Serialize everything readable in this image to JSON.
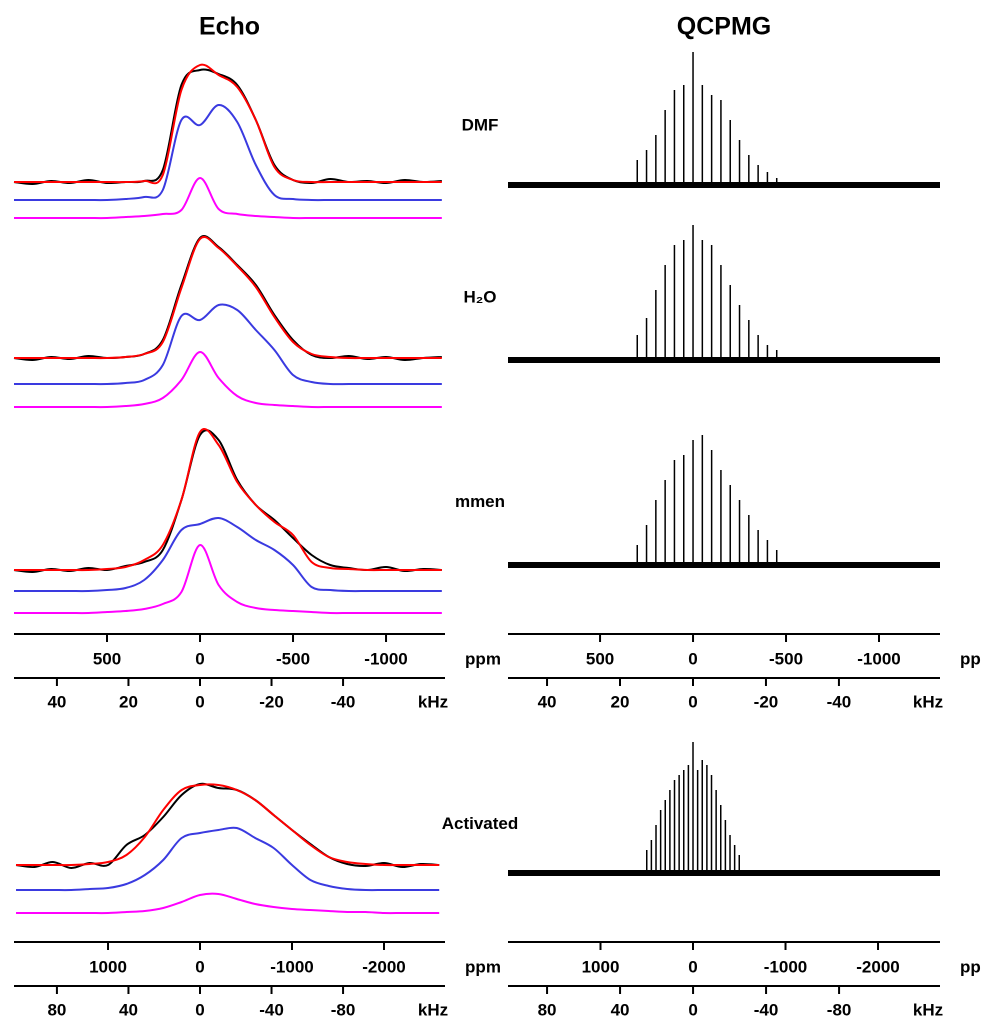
{
  "chart_data": [
    {
      "type": "line",
      "title": "Echo",
      "x_label": "ppm",
      "x2_label": "kHz",
      "xlim": [
        1000,
        -1317
      ],
      "xticks": [
        500,
        0,
        -500,
        -1000
      ],
      "x2lim": [
        52,
        -68.5
      ],
      "x2ticks": [
        40,
        20,
        0,
        -20,
        -40
      ],
      "ylim": [
        0,
        56.5
      ],
      "x": [
        1000,
        900,
        800,
        700,
        600,
        500,
        400,
        300,
        200,
        100,
        0,
        -100,
        -200,
        -300,
        -400,
        -500,
        -600,
        -700,
        -800,
        -900,
        -1000,
        -1100,
        -1200,
        -1300
      ],
      "panels": [
        {
          "label": "DMF",
          "series": [
            {
              "color": "#000000",
              "values": [
                43.8,
                43.6,
                43.9,
                43.7,
                44.0,
                43.7,
                43.8,
                43.9,
                45.0,
                53.5,
                55.0,
                54.6,
                53.5,
                50.0,
                45.5,
                44.0,
                43.7,
                44.1,
                43.8,
                43.9,
                43.7,
                44.0,
                43.8,
                43.9
              ]
            },
            {
              "color": "#ff0000",
              "values": [
                43.8,
                43.8,
                43.8,
                43.8,
                43.8,
                43.8,
                43.8,
                43.9,
                44.5,
                53.0,
                55.5,
                54.5,
                53.3,
                50.0,
                45.3,
                44.0,
                43.8,
                43.8,
                43.8,
                43.8,
                43.8,
                43.8,
                43.8,
                43.8
              ]
            },
            {
              "color": "#3a3ae0",
              "values": [
                42.0,
                42.0,
                42.0,
                42.0,
                42.0,
                42.0,
                42.1,
                42.3,
                43.0,
                50.0,
                49.5,
                51.5,
                49.8,
                45.5,
                42.5,
                42.1,
                42.0,
                42.0,
                42.0,
                42.0,
                42.0,
                42.0,
                42.0,
                42.0
              ]
            },
            {
              "color": "#ff00ff",
              "values": [
                40.2,
                40.2,
                40.2,
                40.2,
                40.2,
                40.2,
                40.3,
                40.4,
                40.6,
                41.0,
                44.2,
                41.1,
                40.6,
                40.4,
                40.3,
                40.2,
                40.2,
                40.2,
                40.2,
                40.2,
                40.2,
                40.2,
                40.2,
                40.2
              ]
            }
          ]
        },
        {
          "label": "H₂O",
          "series": [
            {
              "color": "#000000",
              "values": [
                26.2,
                26.0,
                26.3,
                26.1,
                26.4,
                26.2,
                26.3,
                26.6,
                28.0,
                33.5,
                38.2,
                37.3,
                35.5,
                33.5,
                30.5,
                28.0,
                26.5,
                26.2,
                26.4,
                26.1,
                26.3,
                26.0,
                26.2,
                26.3
              ]
            },
            {
              "color": "#ff0000",
              "values": [
                26.2,
                26.2,
                26.2,
                26.2,
                26.2,
                26.2,
                26.3,
                26.6,
                27.8,
                33.2,
                38.1,
                37.2,
                35.4,
                33.3,
                30.3,
                27.8,
                26.6,
                26.3,
                26.2,
                26.2,
                26.2,
                26.2,
                26.2,
                26.2
              ]
            },
            {
              "color": "#3a3ae0",
              "values": [
                23.6,
                23.6,
                23.6,
                23.6,
                23.6,
                23.6,
                23.7,
                24.0,
                25.5,
                30.4,
                30.0,
                31.5,
                31.0,
                29.0,
                27.0,
                24.5,
                23.8,
                23.6,
                23.6,
                23.6,
                23.6,
                23.6,
                23.6,
                23.6
              ]
            },
            {
              "color": "#ff00ff",
              "values": [
                21.3,
                21.3,
                21.3,
                21.3,
                21.3,
                21.3,
                21.4,
                21.6,
                22.2,
                24.0,
                26.8,
                24.2,
                22.4,
                21.7,
                21.5,
                21.4,
                21.3,
                21.3,
                21.3,
                21.3,
                21.3,
                21.3,
                21.3,
                21.3
              ]
            }
          ]
        },
        {
          "label": "mmen",
          "series": [
            {
              "color": "#000000",
              "values": [
                5.0,
                4.8,
                5.1,
                4.9,
                5.2,
                5.0,
                5.4,
                5.8,
                7.0,
                12.0,
                18.5,
                18.0,
                14.0,
                11.5,
                10.0,
                8.2,
                6.5,
                5.5,
                5.2,
                5.0,
                5.3,
                4.9,
                5.1,
                5.0
              ]
            },
            {
              "color": "#ff0000",
              "values": [
                5.0,
                5.0,
                5.0,
                5.0,
                5.0,
                5.1,
                5.3,
                6.0,
                7.5,
                12.0,
                18.8,
                17.5,
                13.8,
                11.5,
                9.8,
                8.5,
                5.8,
                5.2,
                5.1,
                5.0,
                5.0,
                5.0,
                5.0,
                5.0
              ]
            },
            {
              "color": "#3a3ae0",
              "values": [
                2.9,
                2.9,
                2.9,
                2.9,
                2.9,
                3.0,
                3.2,
                4.0,
                6.0,
                9.0,
                9.6,
                10.2,
                9.3,
                8.0,
                7.0,
                5.5,
                3.3,
                3.0,
                2.9,
                2.9,
                2.9,
                2.9,
                2.9,
                2.9
              ]
            },
            {
              "color": "#ff00ff",
              "values": [
                0.7,
                0.7,
                0.7,
                0.7,
                0.7,
                0.8,
                0.9,
                1.1,
                1.6,
                2.8,
                7.5,
                3.5,
                1.8,
                1.2,
                1.0,
                0.9,
                0.8,
                0.7,
                0.7,
                0.7,
                0.7,
                0.7,
                0.7,
                0.7
              ]
            }
          ]
        }
      ]
    },
    {
      "type": "spikelet",
      "title": "QCPMG",
      "x_label": "ppm",
      "x2_label": "kHz",
      "xlim": [
        995,
        -1328
      ],
      "xticks": [
        500,
        0,
        -500,
        -1000
      ],
      "x2lim": [
        50.7,
        -67.7
      ],
      "x2ticks": [
        40,
        20,
        0,
        -20,
        -40
      ],
      "ylim": [
        0,
        56.5
      ],
      "panels": [
        {
          "color": "#000000",
          "baseline": 43.5,
          "x": [
            300,
            250,
            200,
            150,
            100,
            50,
            0,
            -50,
            -100,
            -150,
            -200,
            -250,
            -300,
            -350,
            -400,
            -450
          ],
          "values": [
            46,
            47,
            48.5,
            51,
            53,
            53.5,
            56.8,
            53.5,
            52.5,
            52,
            50,
            48,
            46.5,
            45.5,
            44.8,
            44.2
          ]
        },
        {
          "color": "#000000",
          "baseline": 26,
          "x": [
            300,
            250,
            200,
            150,
            100,
            50,
            0,
            -50,
            -100,
            -150,
            -200,
            -250,
            -300,
            -350,
            -400,
            -450
          ],
          "values": [
            28.5,
            30.2,
            33,
            35.5,
            37.5,
            38,
            39.5,
            38,
            37.5,
            35.5,
            33.5,
            31.5,
            30,
            28.5,
            27.5,
            27
          ]
        },
        {
          "color": "#000000",
          "baseline": 5.5,
          "x": [
            300,
            250,
            200,
            150,
            100,
            50,
            0,
            -50,
            -100,
            -150,
            -200,
            -250,
            -300,
            -350,
            -400,
            -450
          ],
          "values": [
            7.5,
            9.5,
            12,
            14,
            16,
            16.5,
            18,
            18.5,
            17,
            15,
            13.5,
            12,
            10.5,
            9,
            8,
            7
          ]
        }
      ]
    },
    {
      "type": "line",
      "x_label": "ppm",
      "x2_label": "kHz",
      "xlim": [
        2022,
        -2663
      ],
      "xticks": [
        1000,
        0,
        -1000,
        -2000
      ],
      "x2lim": [
        104,
        -137
      ],
      "x2ticks": [
        80,
        40,
        0,
        -40,
        -80
      ],
      "ylim": [
        0,
        20
      ],
      "x": [
        2000,
        1800,
        1600,
        1400,
        1200,
        1000,
        800,
        600,
        400,
        200,
        0,
        -200,
        -400,
        -600,
        -800,
        -1000,
        -1200,
        -1400,
        -1600,
        -1800,
        -2000,
        -2200,
        -2400,
        -2600
      ],
      "panels": [
        {
          "label": "Activated",
          "series": [
            {
              "color": "#000000",
              "values": [
                6.5,
                6.3,
                6.8,
                6.2,
                6.7,
                6.5,
                8.5,
                9.5,
                11.3,
                13.5,
                14.6,
                14.2,
                14.0,
                13.0,
                11.5,
                10.0,
                8.6,
                7.3,
                6.6,
                6.4,
                6.7,
                6.3,
                6.6,
                6.5
              ]
            },
            {
              "color": "#ff0000",
              "values": [
                6.5,
                6.5,
                6.5,
                6.5,
                6.6,
                6.8,
                7.5,
                9.3,
                12.0,
                14.0,
                14.5,
                14.5,
                14.0,
                13.0,
                11.5,
                10.0,
                8.5,
                7.3,
                6.8,
                6.6,
                6.5,
                6.5,
                6.5,
                6.5
              ]
            },
            {
              "color": "#3a3ae0",
              "values": [
                4.0,
                4.0,
                4.0,
                4.0,
                4.1,
                4.2,
                4.6,
                5.5,
                7.0,
                9.2,
                9.7,
                10.0,
                10.2,
                9.2,
                8.2,
                6.5,
                5.0,
                4.4,
                4.1,
                4.0,
                4.0,
                4.0,
                4.0,
                4.0
              ]
            },
            {
              "color": "#ff00ff",
              "values": [
                1.7,
                1.7,
                1.7,
                1.7,
                1.7,
                1.7,
                1.8,
                1.9,
                2.2,
                2.8,
                3.5,
                3.6,
                3.1,
                2.6,
                2.3,
                2.1,
                2.0,
                1.9,
                1.8,
                1.8,
                1.7,
                1.7,
                1.7,
                1.7
              ]
            }
          ]
        }
      ]
    },
    {
      "type": "spikelet",
      "x_label": "ppm",
      "x2_label": "kHz",
      "xlim": [
        2000,
        -2670
      ],
      "xticks": [
        1000,
        0,
        -1000,
        -2000
      ],
      "x2lim": [
        101.4,
        -135.3
      ],
      "x2ticks": [
        80,
        40,
        0,
        -40,
        -80
      ],
      "ylim": [
        0,
        20
      ],
      "panels": [
        {
          "color": "#000000",
          "baseline": 5.7,
          "x": [
            500,
            450,
            400,
            350,
            300,
            250,
            200,
            150,
            100,
            50,
            0,
            -50,
            -100,
            -150,
            -200,
            -250,
            -300,
            -350,
            -400,
            -450,
            -500
          ],
          "values": [
            8,
            9,
            10.5,
            12,
            13,
            14,
            15,
            15.5,
            16,
            16.5,
            18.8,
            16,
            17,
            16.5,
            15.5,
            14,
            12.5,
            11,
            9.5,
            8.5,
            7.5
          ]
        }
      ]
    }
  ]
}
